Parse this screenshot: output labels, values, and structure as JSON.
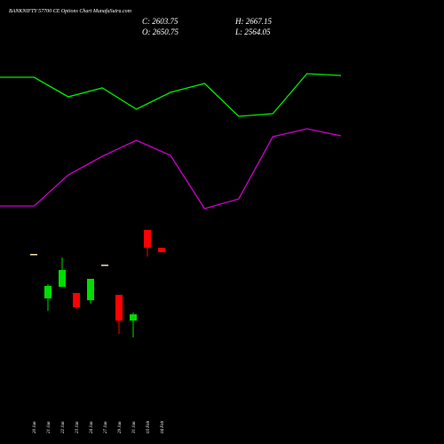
{
  "chart_data": [
    {
      "type": "candlestick",
      "title": "BANKNIFTY 57700  CE Options  Chart MunafaSutra.com",
      "annotations": [
        "C: 2603.75",
        "H: 2667.15",
        "O: 2650.75",
        "L: 2564.05"
      ],
      "categories": [
        "20 Jan",
        "21 Jan",
        "22 Jan",
        "23 Jan",
        "24 Jan",
        "27 Jan",
        "29 Jan",
        "31 Jan",
        "03 Feb",
        "04 Feb"
      ],
      "open": [
        74.3,
        38.6,
        47.9,
        42.9,
        37.1,
        65.7,
        41.4,
        20.7,
        93.6,
        79.3
      ],
      "high": [
        74.3,
        50,
        71.4,
        42.9,
        54.3,
        65.7,
        41.4,
        27.1,
        93.6,
        79.3
      ],
      "low": [
        74.3,
        28.6,
        47.9,
        30,
        34.3,
        65.7,
        10,
        7.1,
        72.1,
        75.7
      ],
      "close": [
        74.3,
        48.6,
        61.4,
        31.4,
        54.3,
        65.7,
        20.7,
        25.7,
        79.3,
        75.7
      ],
      "ylim": [
        0,
        100
      ],
      "up_color": "#00dd00",
      "down_color": "#ff0000",
      "doji_color": "#f5deb3"
    },
    {
      "type": "line",
      "x": [
        0,
        1,
        2,
        3,
        4,
        5,
        6,
        7,
        8,
        9,
        10
      ],
      "xlim": [
        0,
        10
      ],
      "ylim": [
        0,
        100
      ],
      "series": [
        {
          "color": "#00ee00",
          "values": [
            86.5,
            86.5,
            75.5,
            80.5,
            68.5,
            78,
            83,
            64.5,
            66,
            88.5,
            87.5
          ]
        },
        {
          "color": "#cc00cc",
          "values": [
            14,
            14,
            31.5,
            42,
            51,
            42.5,
            12.5,
            18,
            53,
            57.5,
            53.5
          ]
        }
      ]
    }
  ]
}
